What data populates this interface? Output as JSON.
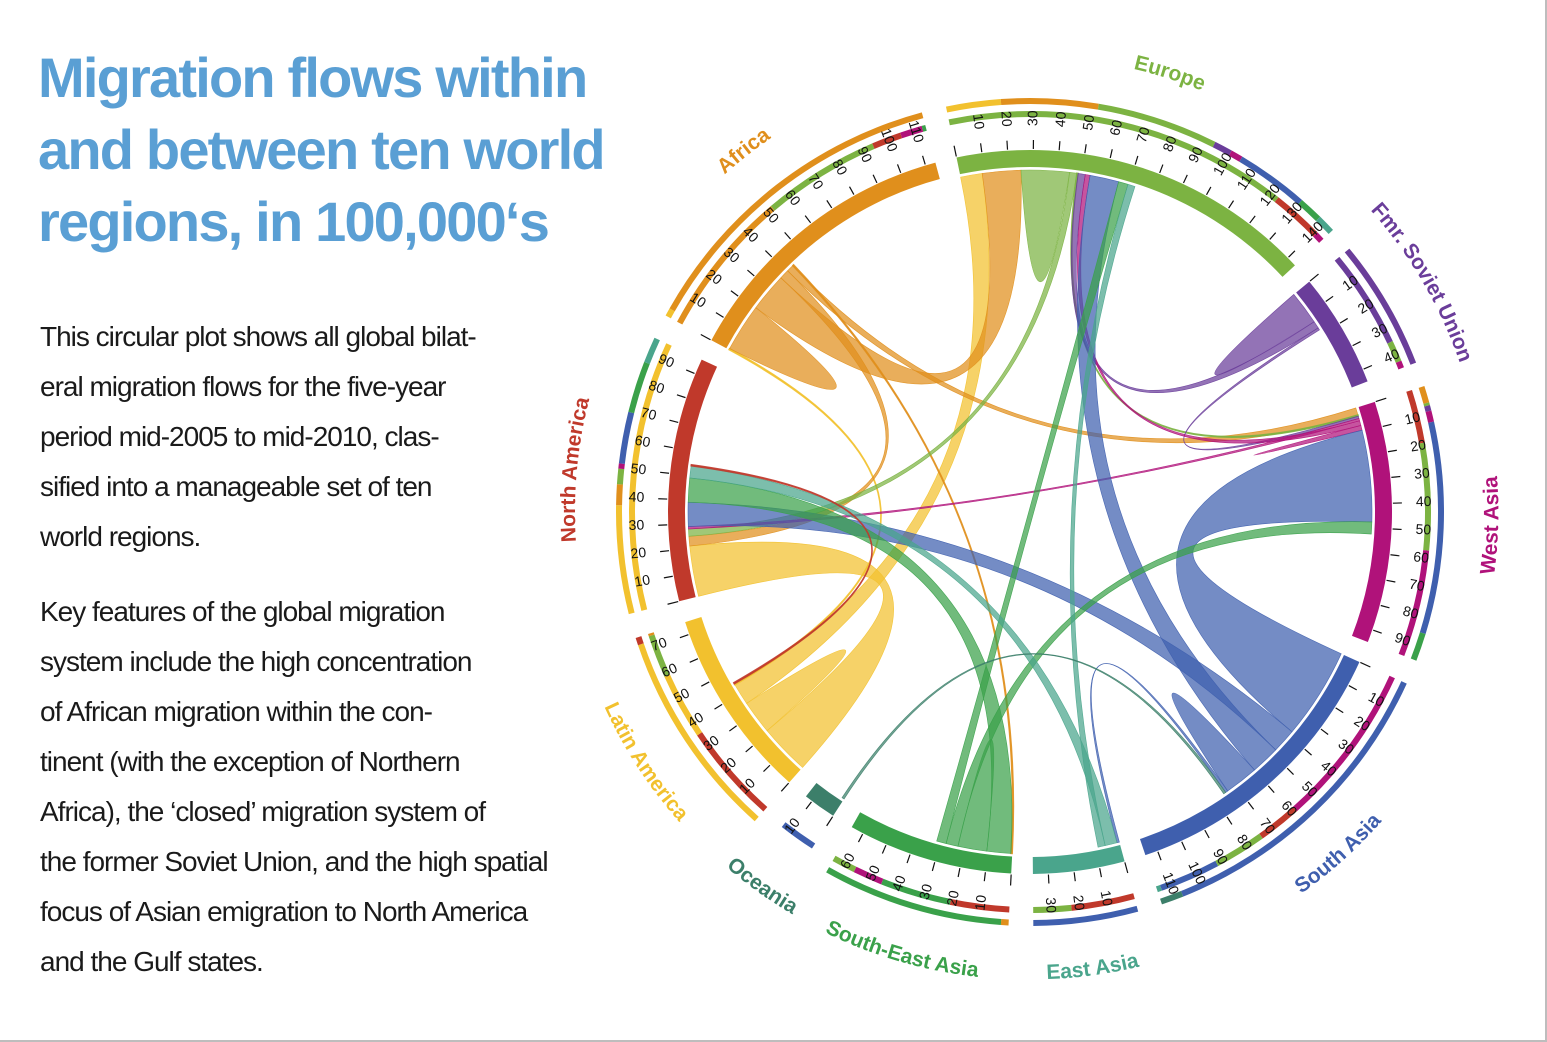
{
  "title_lines": [
    "Migration flows within",
    "and between ten world",
    "regions, in 100,000‘s"
  ],
  "paragraph1_lines": [
    "This circular plot shows all global bilat-",
    "eral migration flows for the five-year",
    "period mid-2005 to mid-2010, clas-",
    "sified into a manageable set of ten",
    "world regions."
  ],
  "paragraph2_lines": [
    "Key features of the global migration",
    "system include the high concentration",
    "of African migration within the con-",
    "tinent (with the exception of Northern",
    "Africa), the ‘closed’ migration system of",
    "the former Soviet Union, and the high spatial",
    "focus of Asian emigration to North America",
    "and the Gulf states."
  ],
  "chart_data": {
    "type": "chord",
    "unit": "100,000's",
    "regions": [
      {
        "name": "North America",
        "color": "#c0392b",
        "total": 96,
        "ticks": [
          10,
          20,
          30,
          40,
          50,
          60,
          70,
          80,
          90
        ]
      },
      {
        "name": "Africa",
        "color": "#e08f1c",
        "total": 114,
        "ticks": [
          10,
          20,
          30,
          40,
          50,
          60,
          70,
          80,
          90,
          100,
          110
        ]
      },
      {
        "name": "Europe",
        "color": "#7cb342",
        "total": 144,
        "ticks": [
          10,
          20,
          30,
          40,
          50,
          60,
          70,
          80,
          90,
          100,
          110,
          120,
          130,
          140
        ]
      },
      {
        "name": "Fmr. Soviet Union",
        "color": "#6a3d9a",
        "total": 45,
        "ticks": [
          10,
          20,
          30,
          40
        ]
      },
      {
        "name": "West Asia",
        "color": "#b0127a",
        "total": 95,
        "ticks": [
          10,
          20,
          30,
          40,
          50,
          60,
          70,
          80,
          90
        ]
      },
      {
        "name": "South Asia",
        "color": "#3f5fae",
        "total": 115,
        "ticks": [
          10,
          20,
          30,
          40,
          50,
          60,
          70,
          80,
          90,
          100,
          110
        ]
      },
      {
        "name": "East Asia",
        "color": "#4aa58c",
        "total": 36,
        "ticks": [
          10,
          20,
          30
        ]
      },
      {
        "name": "South-East Asia",
        "color": "#3aa14a",
        "total": 65,
        "ticks": [
          10,
          20,
          30,
          40,
          50,
          60
        ]
      },
      {
        "name": "Oceania",
        "color": "#3c7f6a",
        "total": 13,
        "ticks": [
          10
        ]
      },
      {
        "name": "Latin America",
        "color": "#f2c12e",
        "total": 75,
        "ticks": [
          10,
          20,
          30,
          40,
          50,
          60,
          70
        ]
      }
    ],
    "flows": [
      {
        "from": "Latin America",
        "to": "North America",
        "value": 21
      },
      {
        "from": "Latin America",
        "to": "Latin America",
        "value": 14
      },
      {
        "from": "Latin America",
        "to": "Europe",
        "value": 9
      },
      {
        "from": "Latin America",
        "to": "Africa",
        "value": 0.5
      },
      {
        "from": "Africa",
        "to": "Africa",
        "value": 20
      },
      {
        "from": "Africa",
        "to": "Europe",
        "value": 16
      },
      {
        "from": "Africa",
        "to": "North America",
        "value": 4
      },
      {
        "from": "Africa",
        "to": "West Asia",
        "value": 3
      },
      {
        "from": "Africa",
        "to": "South-East Asia",
        "value": 0.5
      },
      {
        "from": "Europe",
        "to": "Europe",
        "value": 20
      },
      {
        "from": "Europe",
        "to": "North America",
        "value": 3
      },
      {
        "from": "Europe",
        "to": "West Asia",
        "value": 0.5
      },
      {
        "from": "Fmr. Soviet Union",
        "to": "Fmr. Soviet Union",
        "value": 14
      },
      {
        "from": "Fmr. Soviet Union",
        "to": "Europe",
        "value": 3
      },
      {
        "from": "Fmr. Soviet Union",
        "to": "West Asia",
        "value": 1
      },
      {
        "from": "West Asia",
        "to": "North America",
        "value": 1
      },
      {
        "from": "West Asia",
        "to": "Europe",
        "value": 2
      },
      {
        "from": "West Asia",
        "to": "West Asia",
        "value": 2
      },
      {
        "from": "South Asia",
        "to": "West Asia",
        "value": 38
      },
      {
        "from": "South Asia",
        "to": "North America",
        "value": 10
      },
      {
        "from": "South Asia",
        "to": "Europe",
        "value": 12
      },
      {
        "from": "South Asia",
        "to": "South Asia",
        "value": 14
      },
      {
        "from": "South Asia",
        "to": "East Asia",
        "value": 1
      },
      {
        "from": "South-East Asia",
        "to": "North America",
        "value": 10
      },
      {
        "from": "South-East Asia",
        "to": "South-East Asia",
        "value": 12
      },
      {
        "from": "South-East Asia",
        "to": "West Asia",
        "value": 5
      },
      {
        "from": "South-East Asia",
        "to": "Europe",
        "value": 4
      },
      {
        "from": "East Asia",
        "to": "North America",
        "value": 5
      },
      {
        "from": "East Asia",
        "to": "Europe",
        "value": 3
      },
      {
        "from": "Oceania",
        "to": "South Asia",
        "value": 1
      },
      {
        "from": "North America",
        "to": "Latin America",
        "value": 0.5
      }
    ]
  }
}
